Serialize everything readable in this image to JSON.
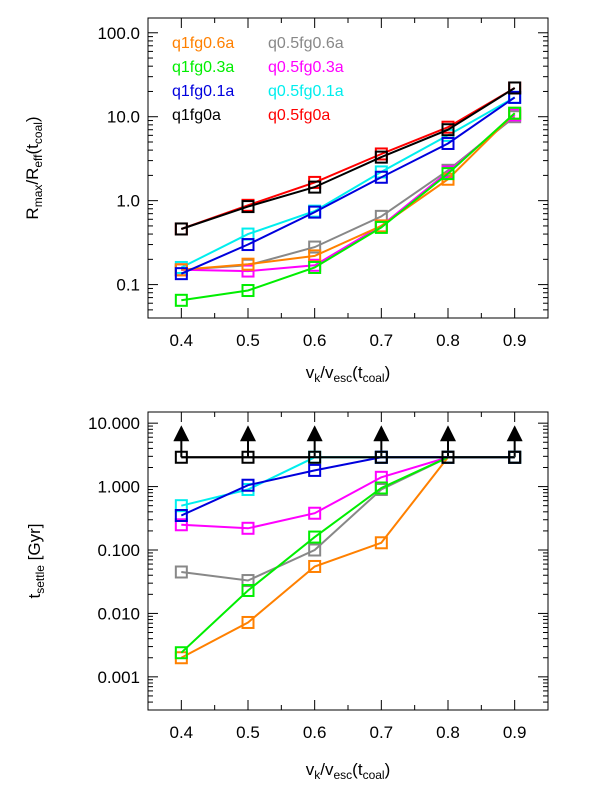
{
  "chart_data": [
    {
      "type": "line",
      "yscale": "log",
      "ylim": [
        0.04,
        150
      ],
      "xlim": [
        0.35,
        0.95
      ],
      "x": [
        0.4,
        0.5,
        0.6,
        0.7,
        0.8,
        0.9
      ],
      "x_ticks": [
        "0.4",
        "0.5",
        "0.6",
        "0.7",
        "0.8",
        "0.9"
      ],
      "y_ticks": [
        {
          "value": 0.1,
          "label": "0.1"
        },
        {
          "value": 1,
          "label": "1.0"
        },
        {
          "value": 10,
          "label": "10.0"
        },
        {
          "value": 100,
          "label": "100.0"
        }
      ],
      "xlabel": {
        "main": "v",
        "sub1": "k",
        "mid": "/v",
        "sub2": "esc",
        "tail": "(t",
        "sub3": "coal",
        "end": ")"
      },
      "ylabel": {
        "main": "R",
        "sub1": "max",
        "mid": "/R",
        "sub2": "eff",
        "tail": "(t",
        "sub3": "coal",
        "end": ")"
      },
      "grid": false,
      "legend_placement": "top-left",
      "legend_columns": [
        [
          "q1fg0.6a",
          "q1fg0.3a",
          "q1fg0.1a",
          "q1fg0a"
        ],
        [
          "q0.5fg0.6a",
          "q0.5fg0.3a",
          "q0.5fg0.1a",
          "q0.5fg0a"
        ]
      ],
      "series": [
        {
          "name": "q0.5fg0.6a",
          "color": "#888888",
          "values": [
            0.15,
            0.17,
            0.28,
            0.65,
            2.3,
            10.0
          ]
        },
        {
          "name": "q0.5fg0.3a",
          "color": "#ff00ff",
          "values": [
            0.15,
            0.145,
            0.17,
            0.5,
            2.2,
            10.5
          ]
        },
        {
          "name": "q0.5fg0.1a",
          "color": "#00eeee",
          "values": [
            0.16,
            0.4,
            0.75,
            2.2,
            6.0,
            17.0
          ]
        },
        {
          "name": "q0.5fg0a",
          "color": "#ff0000",
          "values": [
            0.46,
            0.88,
            1.65,
            3.6,
            7.5,
            22.0
          ]
        },
        {
          "name": "q1fg0.6a",
          "color": "#ff8000",
          "values": [
            0.15,
            0.175,
            0.22,
            0.5,
            1.8,
            11.0
          ]
        },
        {
          "name": "q1fg0.3a",
          "color": "#00ee00",
          "values": [
            0.065,
            0.085,
            0.16,
            0.48,
            2.1,
            11.0
          ]
        },
        {
          "name": "q1fg0.1a",
          "color": "#0000dd",
          "values": [
            0.135,
            0.3,
            0.73,
            1.9,
            4.8,
            17.0
          ]
        },
        {
          "name": "q1fg0a",
          "color": "#000000",
          "values": [
            0.46,
            0.85,
            1.45,
            3.3,
            7.0,
            22.0
          ]
        }
      ]
    },
    {
      "type": "line",
      "yscale": "log",
      "ylim": [
        0.0003,
        15
      ],
      "xlim": [
        0.35,
        0.95
      ],
      "x": [
        0.4,
        0.5,
        0.6,
        0.7,
        0.8,
        0.9
      ],
      "x_ticks": [
        "0.4",
        "0.5",
        "0.6",
        "0.7",
        "0.8",
        "0.9"
      ],
      "y_ticks": [
        {
          "value": 0.001,
          "label": "0.001"
        },
        {
          "value": 0.01,
          "label": "0.010"
        },
        {
          "value": 0.1,
          "label": "0.100"
        },
        {
          "value": 1,
          "label": "1.000"
        },
        {
          "value": 10,
          "label": "10.000"
        }
      ],
      "xlabel": {
        "main": "v",
        "sub1": "k",
        "mid": "/v",
        "sub2": "esc",
        "tail": "(t",
        "sub3": "coal",
        "end": ")"
      },
      "ylabel": {
        "main": "t",
        "sub1": "settle",
        "tail": " [Gyr]"
      },
      "grid": false,
      "hline": {
        "value": 2.9,
        "color": "#000000"
      },
      "lower_limit_arrows": {
        "x": [
          0.4,
          0.5,
          0.6,
          0.7,
          0.8,
          0.9
        ],
        "y": 2.9,
        "color": "#000000"
      },
      "series": [
        {
          "name": "q0.5fg0.6a",
          "color": "#888888",
          "values": [
            0.045,
            0.033,
            0.1,
            0.9,
            2.9,
            2.9
          ]
        },
        {
          "name": "q0.5fg0.3a",
          "color": "#ff00ff",
          "values": [
            0.25,
            0.22,
            0.38,
            1.4,
            2.9,
            2.9
          ]
        },
        {
          "name": "q0.5fg0.1a",
          "color": "#00eeee",
          "values": [
            0.5,
            0.9,
            2.9,
            2.9,
            2.9,
            2.9
          ]
        },
        {
          "name": "q1fg0.6a",
          "color": "#ff8000",
          "values": [
            0.002,
            0.0072,
            0.055,
            0.13,
            2.9,
            2.9
          ]
        },
        {
          "name": "q1fg0.3a",
          "color": "#00ee00",
          "values": [
            0.0024,
            0.023,
            0.16,
            0.95,
            2.9,
            2.9
          ]
        },
        {
          "name": "q1fg0.1a",
          "color": "#0000dd",
          "values": [
            0.35,
            1.05,
            1.8,
            2.9,
            2.9,
            2.9
          ]
        },
        {
          "name": "q1fg0a",
          "color": "#000000",
          "values": [
            2.9,
            2.9,
            2.9,
            2.9,
            2.9,
            2.9
          ]
        }
      ]
    }
  ]
}
